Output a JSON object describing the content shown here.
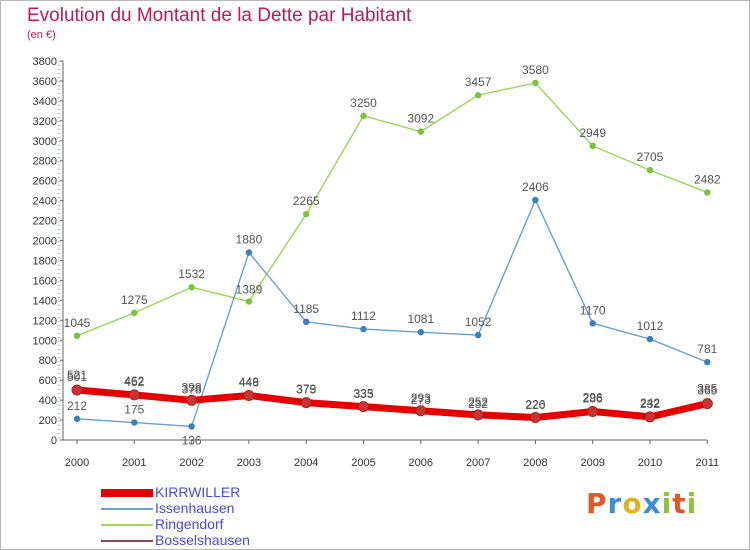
{
  "header": {
    "title": "Evolution du Montant de la Dette par Habitant",
    "subtitle": "(en €)"
  },
  "brand": {
    "logo_text": "Proxiti",
    "logo_colors": [
      "#e2572a",
      "#3a8ed8",
      "#e8b020",
      "#3a8ed8",
      "#8cc43c",
      "#e2572a",
      "#8cc43c"
    ]
  },
  "colors": {
    "title": "#c4165c",
    "legend_text": "#4a4ae0"
  },
  "chart_data": {
    "type": "line",
    "title": "Evolution du Montant de la Dette par Habitant",
    "subtitle": "(en €)",
    "categories": [
      "2000",
      "2001",
      "2002",
      "2003",
      "2004",
      "2005",
      "2006",
      "2007",
      "2008",
      "2009",
      "2010",
      "2011"
    ],
    "ylim": [
      0,
      3800
    ],
    "yticks": [
      0,
      200,
      400,
      600,
      800,
      1000,
      1200,
      1400,
      1600,
      1800,
      2000,
      2200,
      2400,
      2600,
      2800,
      3000,
      3200,
      3400,
      3600,
      3800
    ],
    "grid": false,
    "legend_position": "bottom-left",
    "series": [
      {
        "name": "KIRRWILLER",
        "color": "#e60000",
        "marker": "#cc3333",
        "values": [
          501,
          452,
          398,
          446,
          375,
          335,
          293,
          252,
          226,
          286,
          232,
          365
        ]
      },
      {
        "name": "Issenhausen",
        "color": "#6aa0d0",
        "marker": "#3a7ec0",
        "values": [
          212,
          175,
          136,
          1880,
          1185,
          1112,
          1081,
          1052,
          2406,
          1170,
          1012,
          781
        ]
      },
      {
        "name": "Ringendorf",
        "color": "#9ed45a",
        "marker": "#7cc23a",
        "values": [
          1045,
          1275,
          1532,
          1389,
          2265,
          3250,
          3092,
          3457,
          3580,
          2949,
          2705,
          2482
        ]
      },
      {
        "name": "Bosselshausen",
        "color": "#8c4a5a",
        "marker": "#8c4a5a",
        "values": [
          521,
          462,
          378,
          449,
          379,
          333,
          273,
          232,
          220,
          296,
          242,
          385
        ]
      }
    ]
  }
}
